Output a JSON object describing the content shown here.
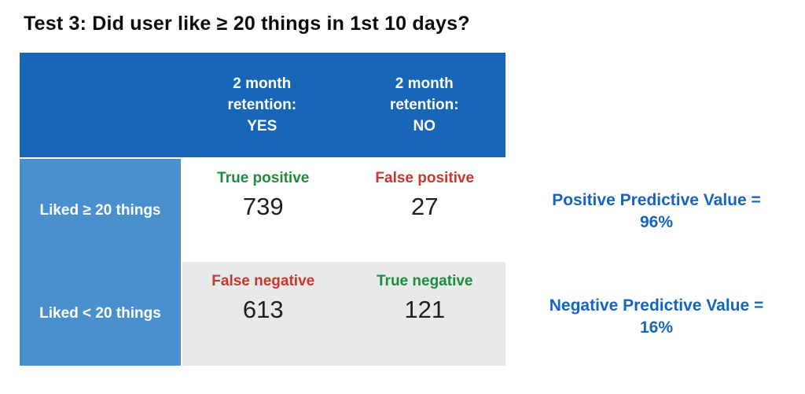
{
  "title": "Test 3: Did user like ≥ 20 things in 1st 10 days?",
  "table": {
    "column_headers": [
      "2 month\nretention:\nYES",
      "2 month\nretention:\nNO"
    ],
    "rows": [
      {
        "label": "Liked ≥ 20 things",
        "cells": [
          {
            "label": "True positive",
            "value": "739",
            "tone": "green"
          },
          {
            "label": "False positive",
            "value": "27",
            "tone": "red"
          }
        ]
      },
      {
        "label": "Liked < 20 things",
        "cells": [
          {
            "label": "False negative",
            "value": "613",
            "tone": "red"
          },
          {
            "label": "True negative",
            "value": "121",
            "tone": "green"
          }
        ]
      }
    ]
  },
  "metrics": [
    {
      "text": "Positive Predictive Value =\n96%"
    },
    {
      "text": "Negative Predictive Value =\n16%"
    }
  ],
  "colors": {
    "header_blue": "#1766b8",
    "row_label_blue": "#4a90cf",
    "cell_gray": "#e8e9eb",
    "positive_green": "#1e8c3c",
    "negative_red": "#c9372c",
    "metric_blue": "#1565c0",
    "title_black": "#0b0b0b"
  },
  "chart_data": {
    "type": "table",
    "title": "Test 3: Did user like ≥ 20 things in 1st 10 days?",
    "column_headers": [
      "2 month retention: YES",
      "2 month retention: NO"
    ],
    "row_headers": [
      "Liked ≥ 20 things",
      "Liked < 20 things"
    ],
    "cells": [
      [
        {
          "label": "True positive",
          "value": 739
        },
        {
          "label": "False positive",
          "value": 27
        }
      ],
      [
        {
          "label": "False negative",
          "value": 613
        },
        {
          "label": "True negative",
          "value": 121
        }
      ]
    ],
    "annotations": [
      "Positive Predictive Value = 96%",
      "Negative Predictive Value = 16%"
    ]
  }
}
